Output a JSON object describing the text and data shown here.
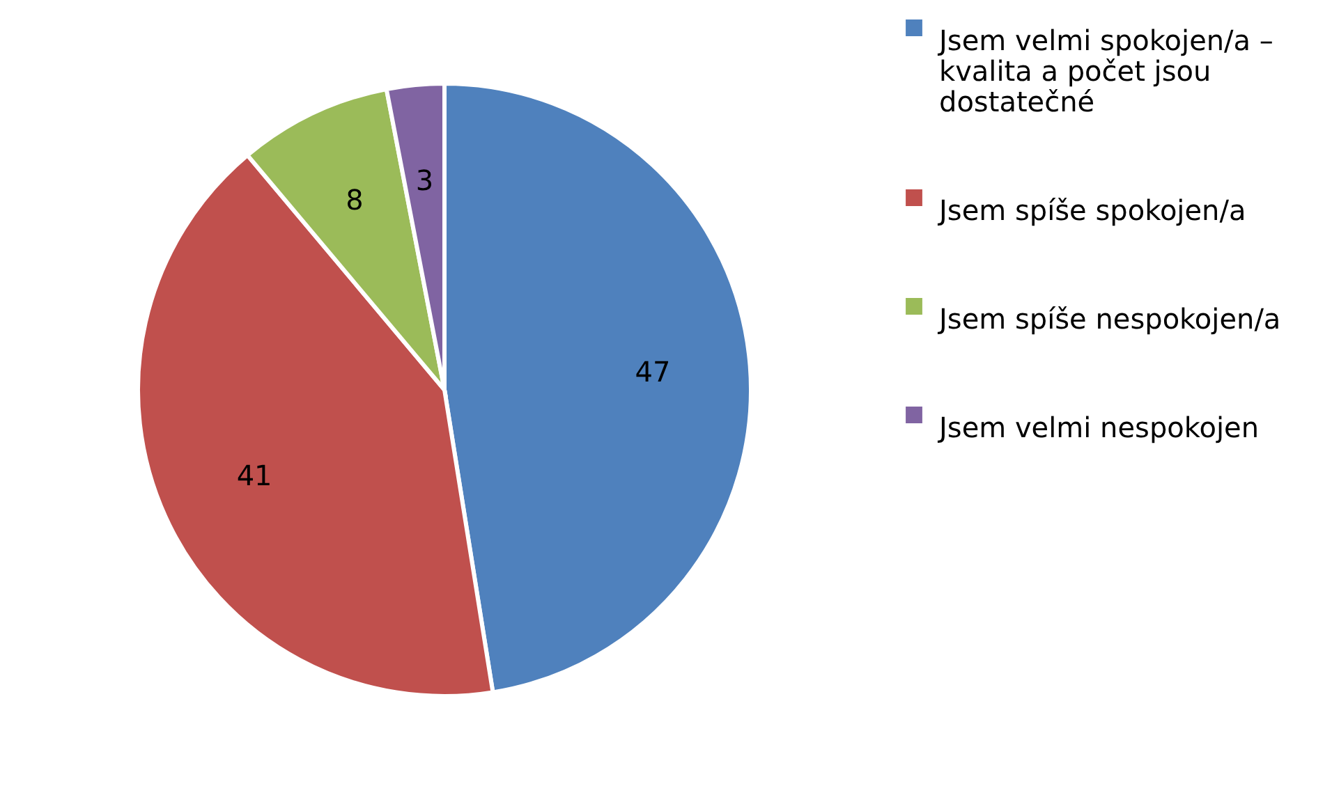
{
  "chart_data": {
    "type": "pie",
    "categories": [
      " Jsem velmi spokojen/a – kvalita a počet jsou dostatečné",
      "Jsem spíše spokojen/a",
      "Jsem spíše nespokojen/a",
      "Jsem velmi nespokojen"
    ],
    "values": [
      47,
      41,
      8,
      3
    ],
    "colors": [
      "#4f81bd",
      "#c0504d",
      "#9bbb59",
      "#8064a2"
    ],
    "data_labels": true,
    "legend": "right"
  }
}
